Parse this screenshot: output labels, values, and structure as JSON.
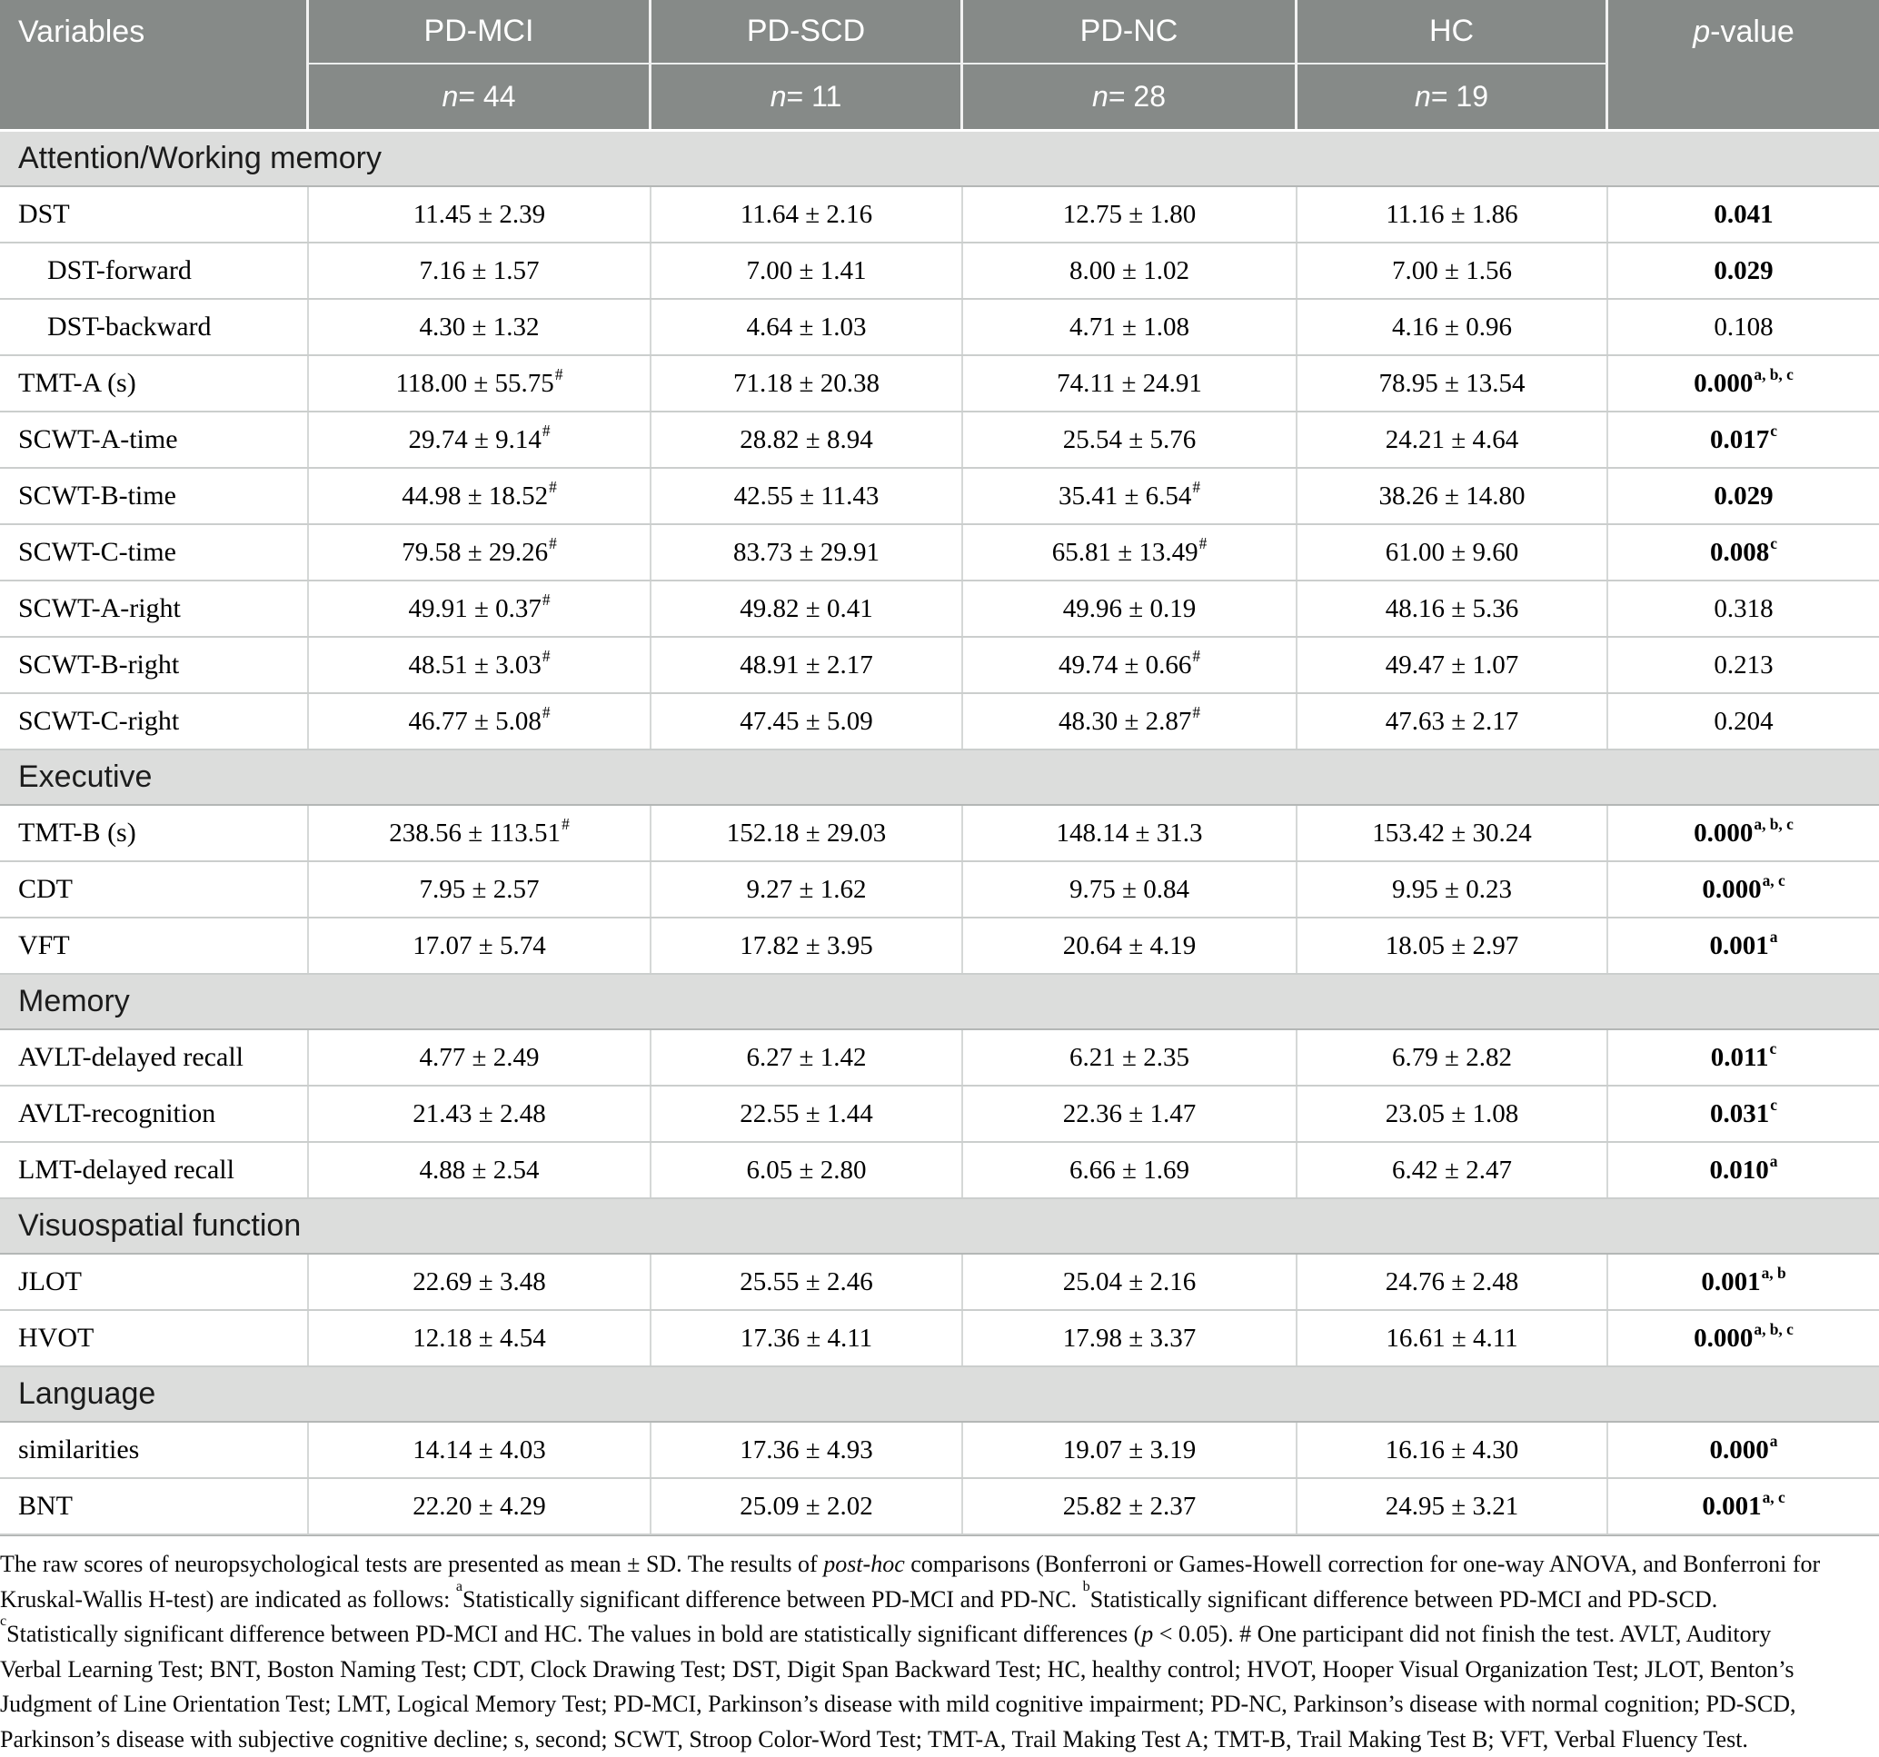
{
  "colors": {
    "header_bg": "#868a88",
    "section_bg": "#dcdddc",
    "header_text": "#ffffff",
    "row_border": "#cbcecd"
  },
  "table": {
    "header": {
      "variables_label": "Variables",
      "p_italic": "p",
      "p_rest": "-value",
      "groups": [
        {
          "name": "PD-MCI",
          "n_italic": "n",
          "n_rest": " = 44"
        },
        {
          "name": "PD-SCD",
          "n_italic": "n",
          "n_rest": " = 11"
        },
        {
          "name": "PD-NC",
          "n_italic": "n",
          "n_rest": " = 28"
        },
        {
          "name": "HC",
          "n_italic": "n",
          "n_rest": " = 19"
        }
      ]
    },
    "sections": [
      {
        "title": "Attention/Working memory",
        "rows": [
          {
            "label": "DST",
            "indent": false,
            "values": [
              "11.45 ± 2.39",
              "11.64 ± 2.16",
              "12.75 ± 1.80",
              "11.16 ± 1.86"
            ],
            "sups": [
              "",
              "",
              "",
              ""
            ],
            "p": "0.041",
            "p_sup": "",
            "p_bold": true
          },
          {
            "label": "DST-forward",
            "indent": true,
            "values": [
              "7.16 ± 1.57",
              "7.00 ± 1.41",
              "8.00 ± 1.02",
              "7.00 ± 1.56"
            ],
            "sups": [
              "",
              "",
              "",
              ""
            ],
            "p": "0.029",
            "p_sup": "",
            "p_bold": true
          },
          {
            "label": "DST-backward",
            "indent": true,
            "values": [
              "4.30 ± 1.32",
              "4.64 ± 1.03",
              "4.71 ± 1.08",
              "4.16 ± 0.96"
            ],
            "sups": [
              "",
              "",
              "",
              ""
            ],
            "p": "0.108",
            "p_sup": "",
            "p_bold": false
          },
          {
            "label": "TMT-A (s)",
            "indent": false,
            "values": [
              "118.00 ± 55.75",
              "71.18 ± 20.38",
              "74.11 ± 24.91",
              "78.95 ± 13.54"
            ],
            "sups": [
              "#",
              "",
              "",
              ""
            ],
            "p": "0.000",
            "p_sup": "a, b, c",
            "p_bold": true
          },
          {
            "label": "SCWT-A-time",
            "indent": false,
            "values": [
              "29.74 ± 9.14",
              "28.82 ± 8.94",
              "25.54 ± 5.76",
              "24.21 ± 4.64"
            ],
            "sups": [
              "#",
              "",
              "",
              ""
            ],
            "p": "0.017",
            "p_sup": "c",
            "p_bold": true
          },
          {
            "label": "SCWT-B-time",
            "indent": false,
            "values": [
              "44.98 ± 18.52",
              "42.55 ± 11.43",
              "35.41 ± 6.54",
              "38.26 ± 14.80"
            ],
            "sups": [
              "#",
              "",
              "#",
              ""
            ],
            "p": "0.029",
            "p_sup": "",
            "p_bold": true
          },
          {
            "label": "SCWT-C-time",
            "indent": false,
            "values": [
              "79.58 ± 29.26",
              "83.73 ± 29.91",
              "65.81 ± 13.49",
              "61.00 ± 9.60"
            ],
            "sups": [
              "#",
              "",
              "#",
              ""
            ],
            "p": "0.008",
            "p_sup": "c",
            "p_bold": true
          },
          {
            "label": "SCWT-A-right",
            "indent": false,
            "values": [
              "49.91 ± 0.37",
              "49.82 ± 0.41",
              "49.96 ± 0.19",
              "48.16 ± 5.36"
            ],
            "sups": [
              "#",
              "",
              "",
              ""
            ],
            "p": "0.318",
            "p_sup": "",
            "p_bold": false
          },
          {
            "label": "SCWT-B-right",
            "indent": false,
            "values": [
              "48.51 ± 3.03",
              "48.91 ± 2.17",
              "49.74 ± 0.66",
              "49.47 ± 1.07"
            ],
            "sups": [
              "#",
              "",
              "#",
              ""
            ],
            "p": "0.213",
            "p_sup": "",
            "p_bold": false
          },
          {
            "label": "SCWT-C-right",
            "indent": false,
            "values": [
              "46.77 ± 5.08",
              "47.45 ± 5.09",
              "48.30 ± 2.87",
              "47.63 ± 2.17"
            ],
            "sups": [
              "#",
              "",
              "#",
              ""
            ],
            "p": "0.204",
            "p_sup": "",
            "p_bold": false
          }
        ]
      },
      {
        "title": "Executive",
        "rows": [
          {
            "label": "TMT-B (s)",
            "indent": false,
            "values": [
              "238.56 ± 113.51",
              "152.18 ± 29.03",
              "148.14 ± 31.3",
              "153.42 ± 30.24"
            ],
            "sups": [
              "#",
              "",
              "",
              ""
            ],
            "p": "0.000",
            "p_sup": "a, b, c",
            "p_bold": true
          },
          {
            "label": "CDT",
            "indent": false,
            "values": [
              "7.95 ± 2.57",
              "9.27 ± 1.62",
              "9.75 ± 0.84",
              "9.95 ± 0.23"
            ],
            "sups": [
              "",
              "",
              "",
              ""
            ],
            "p": "0.000",
            "p_sup": "a, c",
            "p_bold": true
          },
          {
            "label": "VFT",
            "indent": false,
            "values": [
              "17.07 ± 5.74",
              "17.82 ± 3.95",
              "20.64 ± 4.19",
              "18.05 ± 2.97"
            ],
            "sups": [
              "",
              "",
              "",
              ""
            ],
            "p": "0.001",
            "p_sup": "a",
            "p_bold": true
          }
        ]
      },
      {
        "title": "Memory",
        "rows": [
          {
            "label": "AVLT-delayed recall",
            "indent": false,
            "values": [
              "4.77 ± 2.49",
              "6.27 ± 1.42",
              "6.21 ± 2.35",
              "6.79 ± 2.82"
            ],
            "sups": [
              "",
              "",
              "",
              ""
            ],
            "p": "0.011",
            "p_sup": "c",
            "p_bold": true
          },
          {
            "label": "AVLT-recognition",
            "indent": false,
            "values": [
              "21.43 ± 2.48",
              "22.55 ± 1.44",
              "22.36 ± 1.47",
              "23.05 ± 1.08"
            ],
            "sups": [
              "",
              "",
              "",
              ""
            ],
            "p": "0.031",
            "p_sup": "c",
            "p_bold": true
          },
          {
            "label": "LMT-delayed recall",
            "indent": false,
            "values": [
              "4.88 ± 2.54",
              "6.05 ± 2.80",
              "6.66 ± 1.69",
              "6.42 ± 2.47"
            ],
            "sups": [
              "",
              "",
              "",
              ""
            ],
            "p": "0.010",
            "p_sup": "a",
            "p_bold": true
          }
        ]
      },
      {
        "title": "Visuospatial function",
        "rows": [
          {
            "label": "JLOT",
            "indent": false,
            "values": [
              "22.69 ± 3.48",
              "25.55 ± 2.46",
              "25.04 ± 2.16",
              "24.76 ± 2.48"
            ],
            "sups": [
              "",
              "",
              "",
              ""
            ],
            "p": "0.001",
            "p_sup": "a, b",
            "p_bold": true
          },
          {
            "label": "HVOT",
            "indent": false,
            "values": [
              "12.18 ± 4.54",
              "17.36 ± 4.11",
              "17.98 ± 3.37",
              "16.61 ± 4.11"
            ],
            "sups": [
              "",
              "",
              "",
              ""
            ],
            "p": "0.000",
            "p_sup": "a, b, c",
            "p_bold": true
          }
        ]
      },
      {
        "title": "Language",
        "rows": [
          {
            "label": "similarities",
            "indent": false,
            "values": [
              "14.14 ± 4.03",
              "17.36 ± 4.93",
              "19.07 ± 3.19",
              "16.16 ± 4.30"
            ],
            "sups": [
              "",
              "",
              "",
              ""
            ],
            "p": "0.000",
            "p_sup": "a",
            "p_bold": true
          },
          {
            "label": "BNT",
            "indent": false,
            "values": [
              "22.20 ± 4.29",
              "25.09 ± 2.02",
              "25.82 ± 2.37",
              "24.95 ± 3.21"
            ],
            "sups": [
              "",
              "",
              "",
              ""
            ],
            "p": "0.001",
            "p_sup": "a, c",
            "p_bold": true
          }
        ]
      }
    ]
  },
  "footnote": {
    "lines": [
      [
        {
          "t": "The raw scores of neuropsychological tests are presented as mean ± SD. The results of "
        },
        {
          "t": "post-hoc",
          "i": true
        },
        {
          "t": " comparisons (Bonferroni or Games-Howell correction for one-way ANOVA, and Bonferroni for"
        }
      ],
      [
        {
          "t": "Kruskal-Wallis H-test) are indicated as follows: "
        },
        {
          "t": "a",
          "sup": true
        },
        {
          "t": "Statistically significant difference between PD-MCI and PD-NC. "
        },
        {
          "t": "b",
          "sup": true
        },
        {
          "t": "Statistically significant difference between PD-MCI and PD-SCD."
        }
      ],
      [
        {
          "t": "c",
          "sup": true
        },
        {
          "t": "Statistically significant difference between PD-MCI and HC. The values in bold are statistically significant differences ("
        },
        {
          "t": "p",
          "i": true
        },
        {
          "t": " < 0.05). # One participant did not finish the test. AVLT, Auditory"
        }
      ],
      [
        {
          "t": "Verbal Learning Test; BNT, Boston Naming Test; CDT, Clock Drawing Test; DST, Digit Span Backward Test; HC, healthy control; HVOT, Hooper Visual Organization Test; JLOT, Benton’s"
        }
      ],
      [
        {
          "t": "Judgment of Line Orientation Test; LMT, Logical Memory Test; PD-MCI, Parkinson’s disease with mild cognitive impairment; PD-NC, Parkinson’s disease with normal cognition; PD-SCD,"
        }
      ],
      [
        {
          "t": "Parkinson’s disease with subjective cognitive decline; s, second; SCWT, Stroop Color-Word Test; TMT-A, Trail Making Test A; TMT-B, Trail Making Test B; VFT, Verbal Fluency Test."
        }
      ]
    ]
  }
}
